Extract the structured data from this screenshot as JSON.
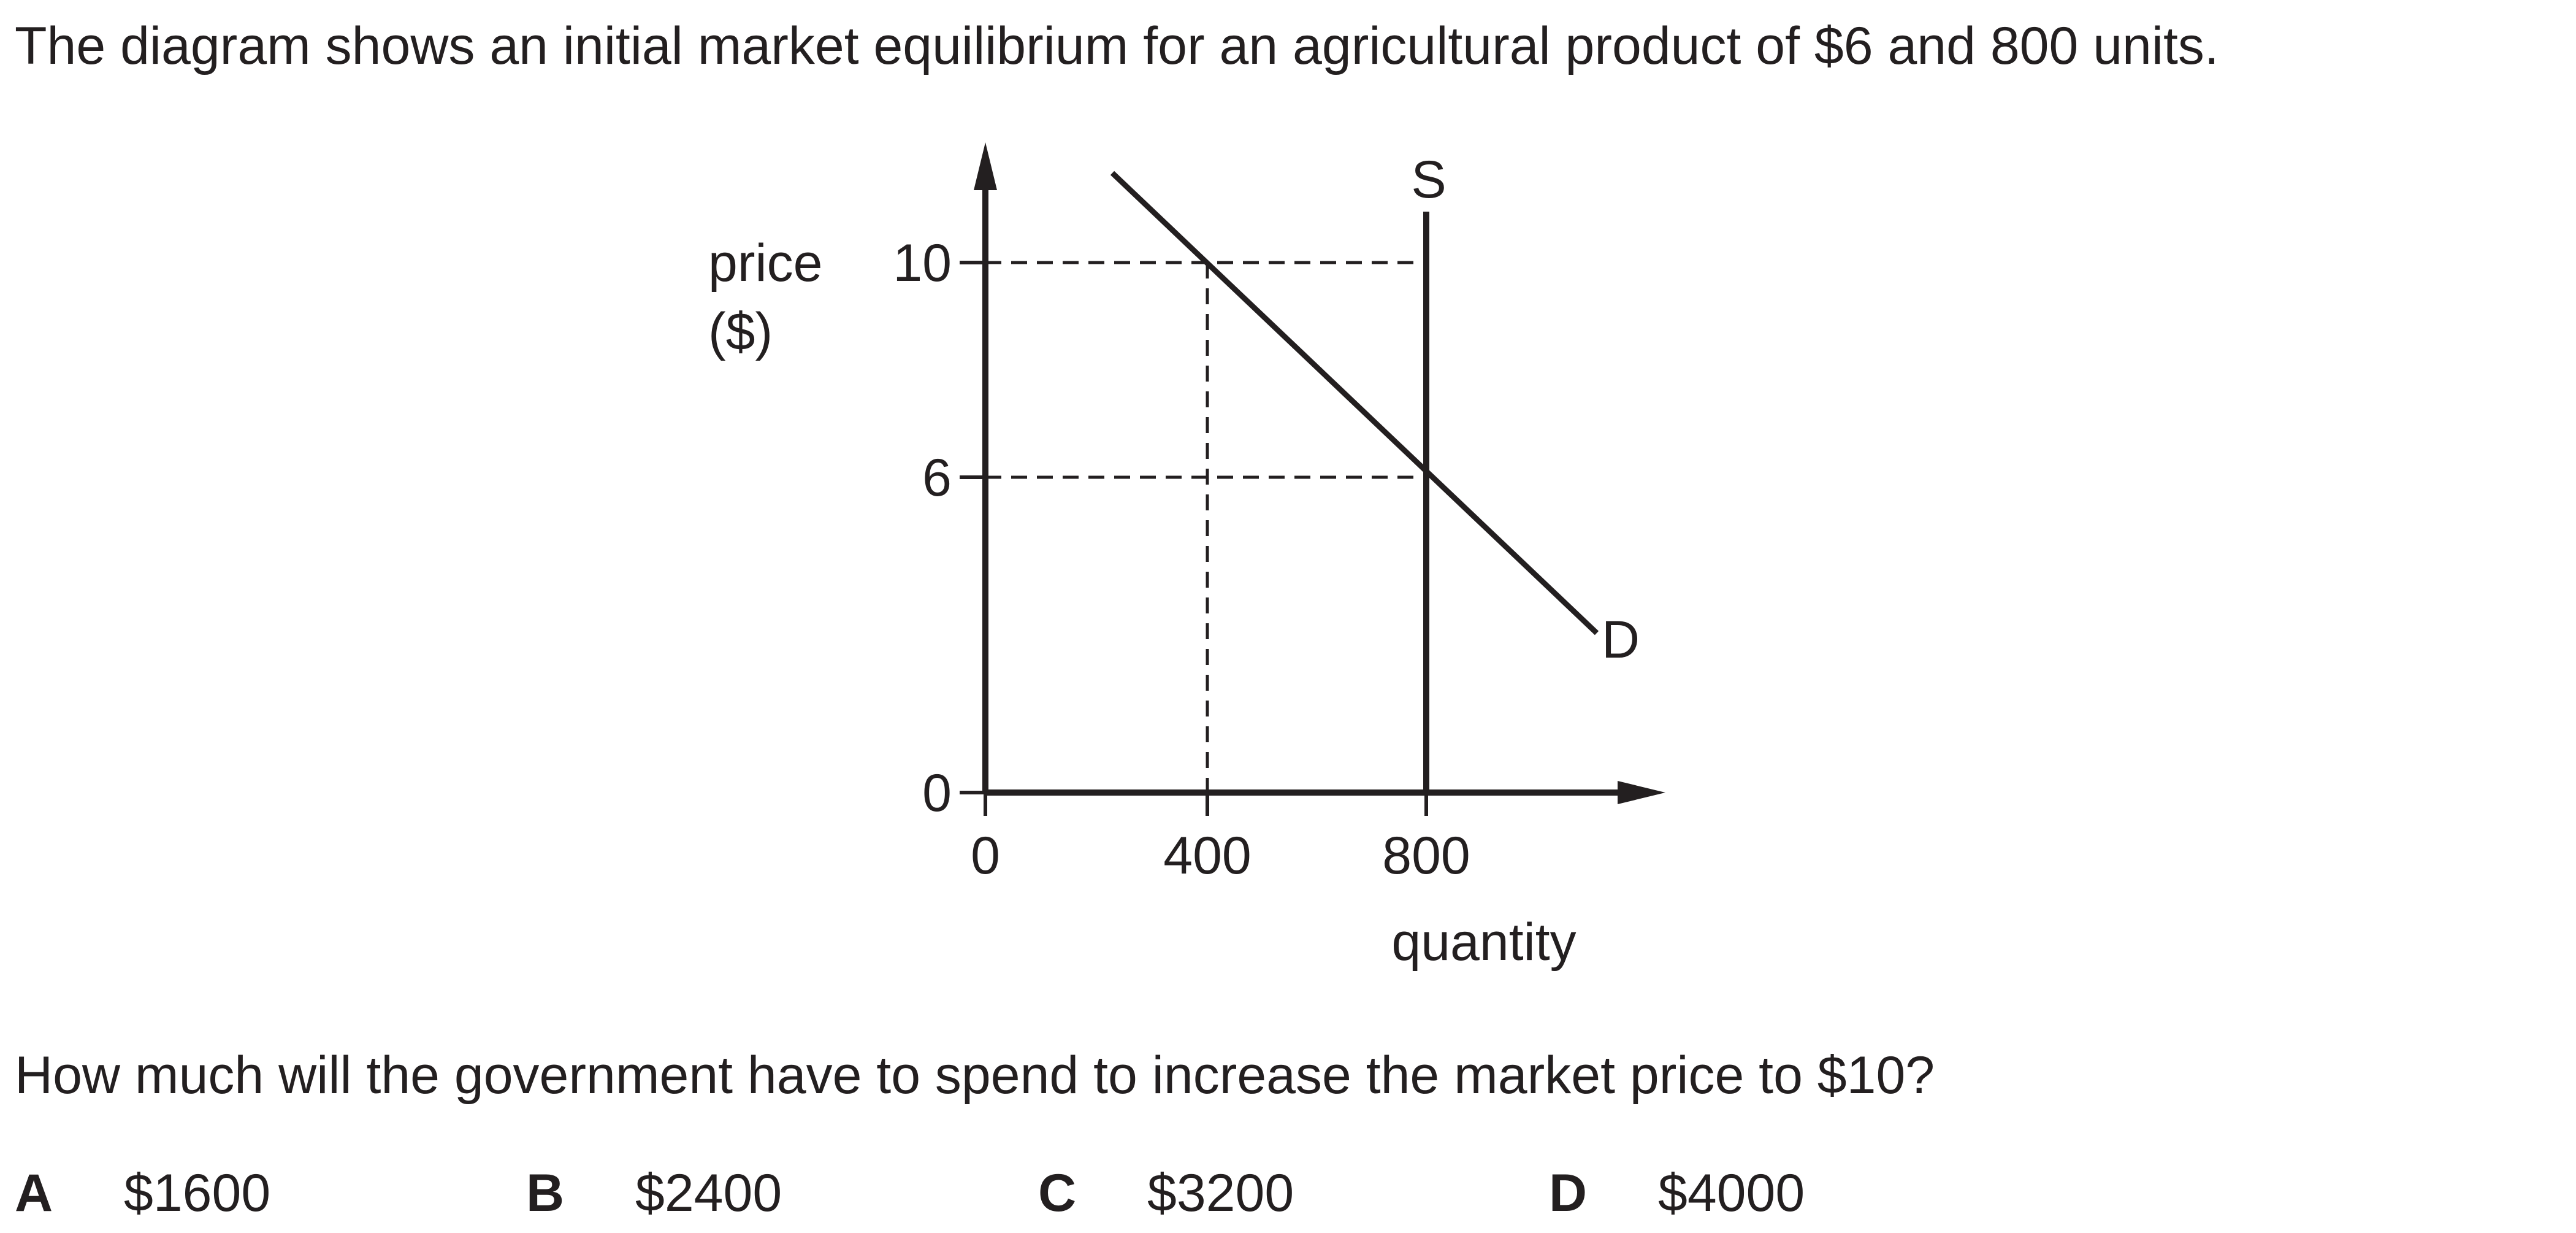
{
  "intro_text": "The diagram shows an initial market equilibrium for an agricultural product of $6 and 800 units.",
  "question_text": "How much will the government have to spend to increase the market price to $10?",
  "options": [
    {
      "letter": "A",
      "value": "$1600"
    },
    {
      "letter": "B",
      "value": "$2400"
    },
    {
      "letter": "C",
      "value": "$3200"
    },
    {
      "letter": "D",
      "value": "$4000"
    }
  ],
  "diagram": {
    "y_axis_label_line1": "price",
    "y_axis_label_line2": "($)",
    "x_axis_label": "quantity",
    "x_ticks": [
      "0",
      "400",
      "800"
    ],
    "y_ticks": [
      "0",
      "6",
      "10"
    ],
    "supply_label": "S",
    "demand_label": "D",
    "supply_quantity": 800,
    "demand_line": [
      {
        "quantity": 225,
        "price": 11.75
      },
      {
        "quantity": 1100,
        "price": 3
      }
    ],
    "guide_points": [
      {
        "quantity": 400,
        "price": 10
      },
      {
        "quantity": 800,
        "price": 10
      },
      {
        "quantity": 800,
        "price": 6
      }
    ]
  }
}
